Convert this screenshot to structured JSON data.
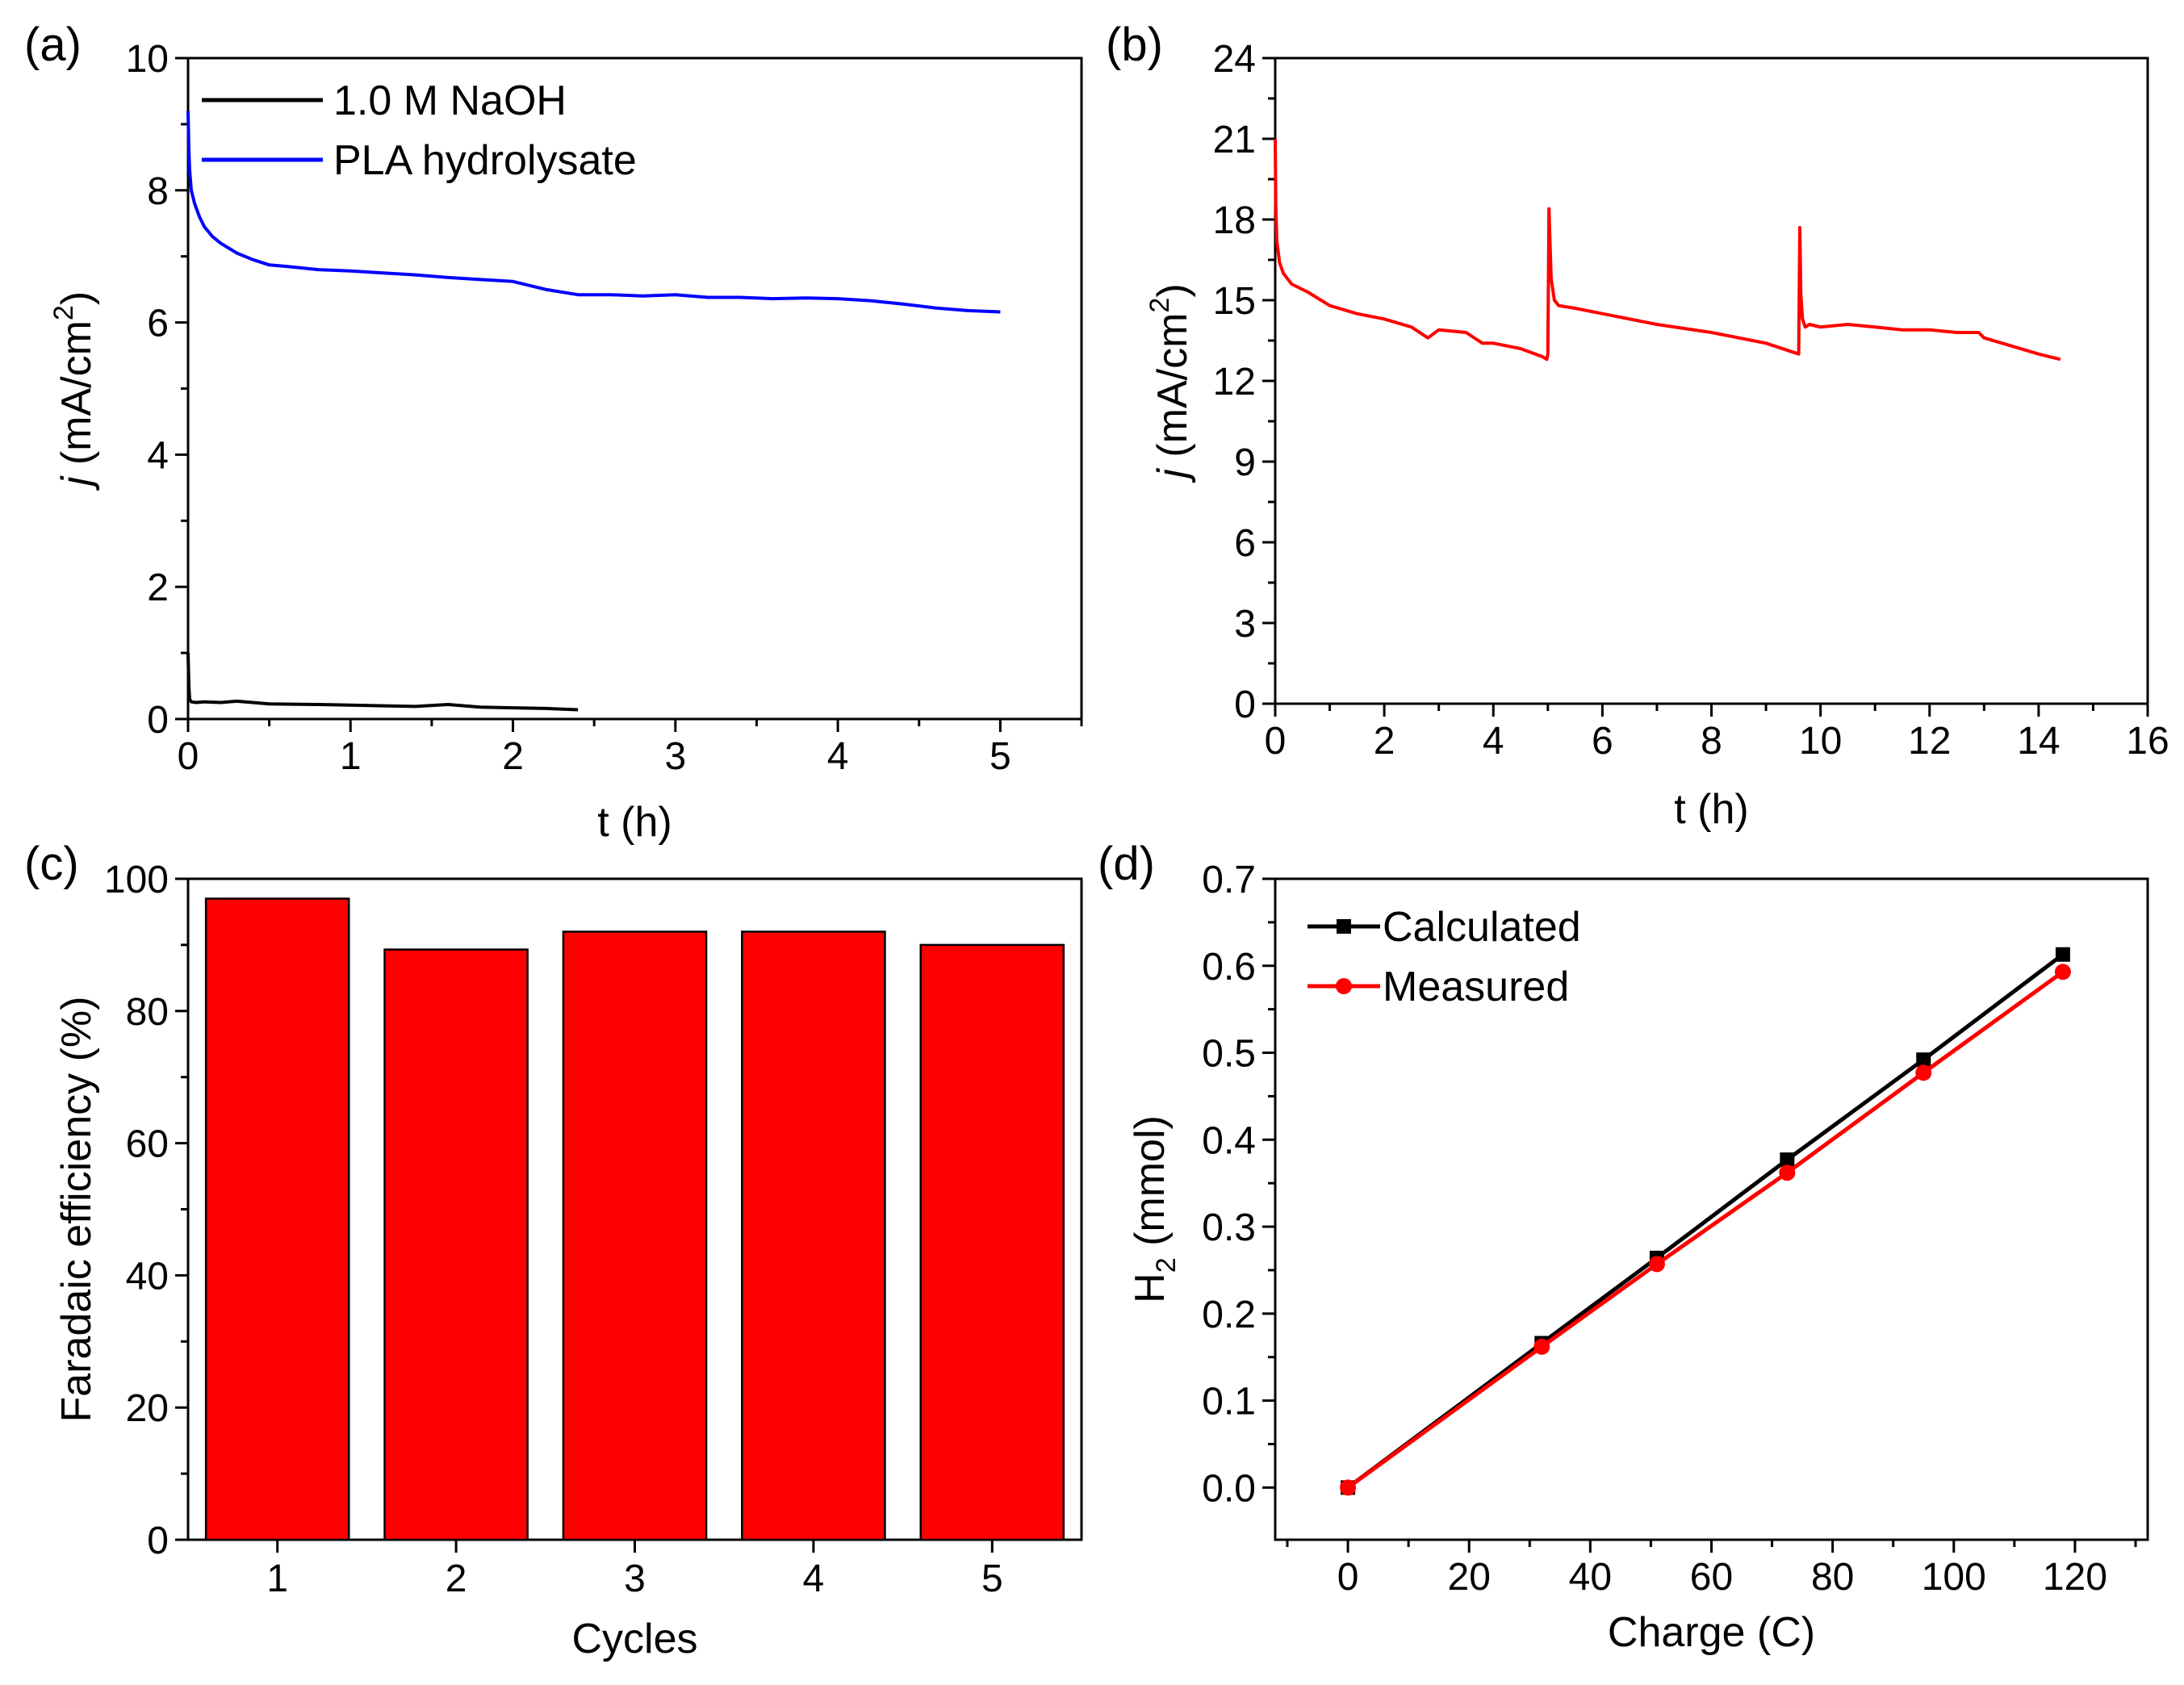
{
  "figure": {
    "panel_labels": [
      "(a)",
      "(b)",
      "(c)",
      "(d)"
    ]
  },
  "chart_data": [
    {
      "panel": "(a)",
      "type": "line",
      "xlabel": "t (h)",
      "ylabel": "j (mA/cm2)",
      "ylabel_parts": {
        "italic": "j",
        "text": " (mA/cm",
        "sup": "2",
        "close": ")"
      },
      "xlim": [
        0,
        5.5
      ],
      "ylim": [
        0,
        10
      ],
      "xticks": [
        0,
        1,
        2,
        3,
        4,
        5
      ],
      "yticks": [
        0,
        2,
        4,
        6,
        8,
        10
      ],
      "legend_position": "top-left",
      "series": [
        {
          "name": "1.0 M NaOH",
          "color": "#000000",
          "x": [
            0,
            0.005,
            0.01,
            0.02,
            0.05,
            0.1,
            0.2,
            0.3,
            0.5,
            0.8,
            1.0,
            1.2,
            1.4,
            1.6,
            1.8,
            2.0,
            2.2,
            2.4
          ],
          "y": [
            1.0,
            0.5,
            0.3,
            0.26,
            0.25,
            0.26,
            0.25,
            0.27,
            0.23,
            0.22,
            0.21,
            0.2,
            0.19,
            0.22,
            0.18,
            0.17,
            0.16,
            0.14
          ]
        },
        {
          "name": "PLA hydrolysate",
          "color": "#0000ff",
          "x": [
            0,
            0.005,
            0.01,
            0.02,
            0.04,
            0.07,
            0.1,
            0.15,
            0.2,
            0.3,
            0.4,
            0.5,
            0.6,
            0.8,
            1.0,
            1.2,
            1.4,
            1.6,
            1.8,
            2.0,
            2.2,
            2.4,
            2.6,
            2.8,
            3.0,
            3.2,
            3.4,
            3.6,
            3.8,
            4.0,
            4.2,
            4.4,
            4.6,
            4.8,
            5.0
          ],
          "y": [
            9.2,
            8.6,
            8.3,
            8.0,
            7.8,
            7.6,
            7.45,
            7.3,
            7.2,
            7.05,
            6.95,
            6.87,
            6.85,
            6.8,
            6.78,
            6.75,
            6.72,
            6.68,
            6.65,
            6.62,
            6.5,
            6.42,
            6.42,
            6.4,
            6.42,
            6.38,
            6.38,
            6.36,
            6.37,
            6.36,
            6.33,
            6.28,
            6.22,
            6.18,
            6.16
          ]
        }
      ]
    },
    {
      "panel": "(b)",
      "type": "line",
      "xlabel": "t (h)",
      "ylabel": "j (mA/cm2)",
      "ylabel_parts": {
        "italic": "j",
        "text": " (mA/cm",
        "sup": "2",
        "close": ")"
      },
      "xlim": [
        0,
        16
      ],
      "ylim": [
        0,
        24
      ],
      "xticks": [
        0,
        2,
        4,
        6,
        8,
        10,
        12,
        14,
        16
      ],
      "yticks": [
        0,
        3,
        6,
        9,
        12,
        15,
        18,
        21,
        24
      ],
      "series": [
        {
          "name": "j",
          "color": "#ff0000",
          "x": [
            0,
            0.01,
            0.03,
            0.08,
            0.15,
            0.3,
            0.6,
            1.0,
            1.5,
            2.0,
            2.5,
            2.8,
            3.0,
            3.5,
            3.8,
            4.0,
            4.5,
            4.9,
            4.98,
            5.0,
            5.02,
            5.06,
            5.12,
            5.2,
            5.5,
            6.0,
            7.0,
            8.0,
            9.0,
            9.6,
            9.62,
            9.64,
            9.67,
            9.72,
            9.8,
            10.0,
            10.5,
            11.0,
            11.5,
            12.0,
            12.5,
            12.9,
            13.0,
            13.5,
            14.0,
            14.4
          ],
          "y": [
            21.0,
            18.5,
            17.2,
            16.4,
            16.0,
            15.6,
            15.3,
            14.8,
            14.5,
            14.3,
            14.0,
            13.6,
            13.9,
            13.8,
            13.4,
            13.4,
            13.2,
            12.9,
            12.8,
            13.0,
            18.4,
            15.8,
            15.0,
            14.8,
            14.7,
            14.5,
            14.1,
            13.8,
            13.4,
            13.0,
            17.7,
            15.2,
            14.3,
            14.0,
            14.1,
            14.0,
            14.1,
            14.0,
            13.9,
            13.9,
            13.8,
            13.8,
            13.6,
            13.3,
            13.0,
            12.8
          ]
        }
      ]
    },
    {
      "panel": "(c)",
      "type": "bar",
      "xlabel": "Cycles",
      "ylabel": "Faradaic efficiency (%)",
      "categories": [
        "1",
        "2",
        "3",
        "4",
        "5"
      ],
      "values": [
        97,
        89.3,
        92,
        92,
        90
      ],
      "ylim": [
        0,
        100
      ],
      "yticks": [
        0,
        20,
        40,
        60,
        80,
        100
      ],
      "bar_color": "#ff0000"
    },
    {
      "panel": "(d)",
      "type": "line",
      "xlabel": "Charge (C)",
      "ylabel": "H2 (mmol)",
      "ylabel_parts": {
        "main": "H",
        "sub": "2",
        "rest": " (mmol)"
      },
      "xlim": [
        -12,
        132
      ],
      "ylim": [
        -0.06,
        0.7
      ],
      "xticks": [
        0,
        20,
        40,
        60,
        80,
        100,
        120
      ],
      "yticks": [
        0.0,
        0.1,
        0.2,
        0.3,
        0.4,
        0.5,
        0.6,
        0.7
      ],
      "ytick_labels": [
        "0.0",
        "0.1",
        "0.2",
        "0.3",
        "0.4",
        "0.5",
        "0.6",
        "0.7"
      ],
      "legend_position": "top-left",
      "series": [
        {
          "name": "Calculated",
          "color": "#000000",
          "marker": "square",
          "x": [
            0,
            32,
            51,
            72.5,
            95,
            118
          ],
          "y": [
            0,
            0.166,
            0.264,
            0.377,
            0.492,
            0.613
          ]
        },
        {
          "name": "Measured",
          "color": "#ff0000",
          "marker": "circle",
          "x": [
            0,
            32,
            51,
            72.5,
            95,
            118
          ],
          "y": [
            0,
            0.162,
            0.257,
            0.362,
            0.477,
            0.593
          ]
        }
      ]
    }
  ]
}
